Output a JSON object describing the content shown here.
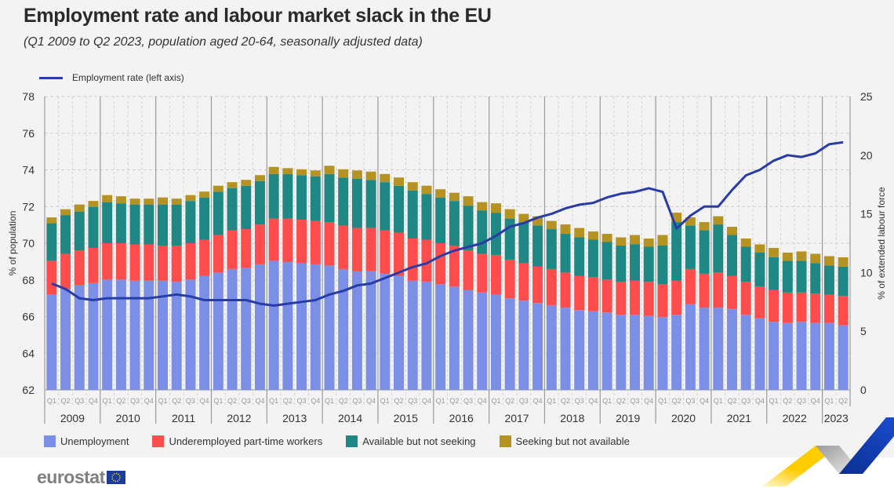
{
  "header": {
    "title": "Employment rate and labour market slack in the EU",
    "subtitle": "(Q1 2009 to Q2 2023, population aged 20-64, seasonally adjusted data)"
  },
  "logo": {
    "text": "eurostat"
  },
  "chart_data": {
    "type": "bar",
    "stacked": true,
    "title": "Employment rate and labour market slack in the EU",
    "years": [
      "2009",
      "2010",
      "2011",
      "2012",
      "2013",
      "2014",
      "2015",
      "2016",
      "2017",
      "2018",
      "2019",
      "2020",
      "2021",
      "2022",
      "2023"
    ],
    "quarter_labels": [
      "Q1",
      "Q2",
      "Q3",
      "Q4"
    ],
    "ylabel_left": "% of population",
    "ylabel_right": "% of extended labour force",
    "ylim_left": [
      62,
      78
    ],
    "yticks_left": [
      "62",
      "64",
      "66",
      "68",
      "70",
      "72",
      "74",
      "76",
      "78"
    ],
    "ylim_right": [
      0,
      25
    ],
    "yticks_right": [
      "0",
      "5",
      "10",
      "15",
      "20",
      "25"
    ],
    "grid": true,
    "legend_position": "top-left and bottom",
    "line_series": {
      "name": "Employment rate (left axis)",
      "axis": "left",
      "color": "#283ca8",
      "values": [
        67.8,
        67.5,
        67.0,
        66.9,
        67.0,
        67.0,
        67.0,
        67.0,
        67.1,
        67.2,
        67.1,
        66.9,
        66.9,
        66.9,
        66.9,
        66.7,
        66.6,
        66.7,
        66.8,
        66.9,
        67.2,
        67.4,
        67.7,
        67.8,
        68.1,
        68.4,
        68.7,
        68.9,
        69.3,
        69.6,
        69.8,
        70.0,
        70.4,
        70.9,
        71.1,
        71.4,
        71.6,
        71.9,
        72.1,
        72.2,
        72.5,
        72.7,
        72.8,
        73.0,
        72.8,
        70.8,
        71.5,
        72.0,
        72.0,
        72.9,
        73.7,
        74.0,
        74.5,
        74.8,
        74.7,
        74.9,
        75.4,
        75.5
      ]
    },
    "series": [
      {
        "name": "Unemployment",
        "axis": "right",
        "color": "#7b8fe6",
        "values": [
          8.1,
          8.6,
          8.9,
          9.1,
          9.4,
          9.4,
          9.3,
          9.3,
          9.3,
          9.2,
          9.4,
          9.7,
          10.0,
          10.3,
          10.4,
          10.7,
          11.0,
          10.9,
          10.8,
          10.7,
          10.6,
          10.3,
          10.1,
          10.1,
          9.9,
          9.7,
          9.3,
          9.2,
          9.0,
          8.8,
          8.5,
          8.3,
          8.1,
          7.8,
          7.6,
          7.4,
          7.2,
          7.0,
          6.8,
          6.7,
          6.6,
          6.4,
          6.4,
          6.3,
          6.2,
          6.4,
          7.3,
          7.0,
          7.0,
          6.9,
          6.4,
          6.1,
          5.8,
          5.7,
          5.8,
          5.7,
          5.7,
          5.5
        ]
      },
      {
        "name": "Underemployed part-time workers",
        "axis": "right",
        "color": "#ff4d4d",
        "values": [
          2.9,
          3.0,
          3.0,
          3.0,
          3.1,
          3.1,
          3.1,
          3.1,
          3.0,
          3.1,
          3.1,
          3.1,
          3.2,
          3.3,
          3.3,
          3.4,
          3.6,
          3.7,
          3.7,
          3.7,
          3.7,
          3.7,
          3.7,
          3.7,
          3.7,
          3.7,
          3.6,
          3.6,
          3.5,
          3.5,
          3.4,
          3.3,
          3.4,
          3.3,
          3.2,
          3.1,
          3.1,
          3.0,
          2.9,
          2.9,
          2.8,
          2.8,
          2.9,
          2.9,
          2.8,
          2.9,
          3.0,
          2.9,
          3.0,
          2.8,
          2.8,
          2.7,
          2.7,
          2.6,
          2.5,
          2.5,
          2.4,
          2.5
        ]
      },
      {
        "name": "Available but not seeking",
        "axis": "right",
        "color": "#1f8784",
        "values": [
          3.2,
          3.3,
          3.3,
          3.5,
          3.5,
          3.4,
          3.4,
          3.4,
          3.5,
          3.5,
          3.6,
          3.6,
          3.7,
          3.6,
          3.7,
          3.7,
          3.8,
          3.8,
          3.8,
          3.8,
          4.1,
          4.1,
          4.2,
          4.1,
          4.1,
          4.0,
          4.1,
          3.9,
          3.9,
          3.8,
          3.8,
          3.7,
          3.6,
          3.5,
          3.5,
          3.5,
          3.4,
          3.3,
          3.3,
          3.2,
          3.2,
          3.1,
          3.1,
          3.0,
          3.3,
          5.0,
          3.7,
          3.7,
          4.1,
          3.5,
          3.0,
          2.9,
          2.8,
          2.7,
          2.7,
          2.6,
          2.5,
          2.5
        ]
      },
      {
        "name": "Seeking but not available",
        "axis": "right",
        "color": "#b59322",
        "values": [
          0.5,
          0.5,
          0.6,
          0.5,
          0.6,
          0.6,
          0.5,
          0.5,
          0.6,
          0.5,
          0.5,
          0.5,
          0.5,
          0.5,
          0.5,
          0.5,
          0.6,
          0.5,
          0.5,
          0.5,
          0.7,
          0.7,
          0.7,
          0.7,
          0.7,
          0.7,
          0.7,
          0.7,
          0.7,
          0.7,
          0.8,
          0.7,
          0.8,
          0.8,
          0.7,
          0.8,
          0.7,
          0.8,
          0.8,
          0.7,
          0.7,
          0.7,
          0.8,
          0.7,
          0.9,
          0.8,
          0.7,
          0.7,
          0.7,
          0.7,
          0.7,
          0.7,
          0.8,
          0.7,
          0.8,
          0.8,
          0.8,
          0.8
        ]
      }
    ]
  }
}
